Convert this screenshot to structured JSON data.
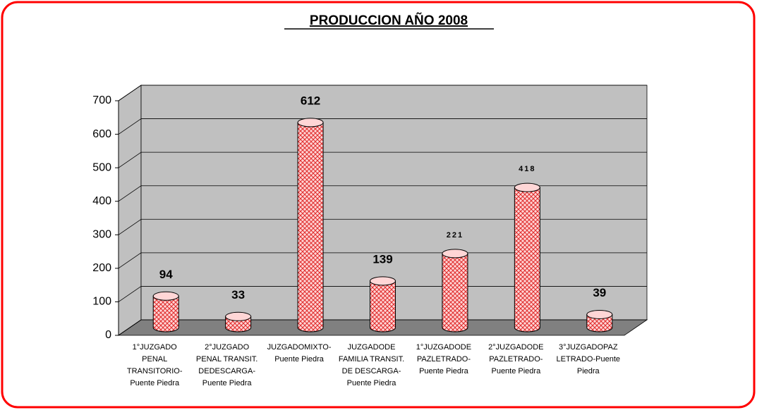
{
  "chart_data": {
    "type": "bar3d",
    "title": "PRODUCCION  AÑO 2008",
    "categories": [
      "1°JUZGADO PENAL TRANSITORIO-Puente Piedra",
      "2°JUZGADO PENAL TRANSIT. DEDESCARGA-Puente Piedra",
      "JUZGADOMIXTO-Puente Piedra",
      "JUZGADODE FAMILIA TRANSIT. DE DESCARGA-Puente Piedra",
      "1°JUZGADODE PAZLETRADO-Puente Piedra",
      "2°JUZGADODE PAZLETRADO-Puente Piedra",
      "3°JUZGADOPAZ LETRADO-Puente Piedra"
    ],
    "values": [
      94,
      33,
      612,
      139,
      221,
      418,
      39
    ],
    "color": "#ff9999",
    "ylim": [
      0,
      700
    ],
    "yticks": [
      0,
      100,
      200,
      300,
      400,
      500,
      600,
      700
    ],
    "grid": true
  }
}
